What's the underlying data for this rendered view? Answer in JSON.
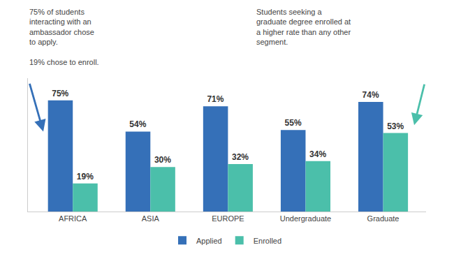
{
  "chart_data": {
    "type": "bar",
    "categories": [
      "AFRICA",
      "ASIA",
      "EUROPE",
      "Undergraduate",
      "Graduate"
    ],
    "series": [
      {
        "name": "Applied",
        "color": "#3570B8",
        "values": [
          75,
          54,
          71,
          55,
          74
        ],
        "value_labels": [
          "75%",
          "54%",
          "71%",
          "55%",
          "74%"
        ]
      },
      {
        "name": "Enrolled",
        "color": "#4BBFAA",
        "values": [
          19,
          30,
          32,
          34,
          53
        ],
        "value_labels": [
          "19%",
          "30%",
          "32%",
          "34%",
          "53%"
        ]
      }
    ],
    "ylim": [
      0,
      90
    ],
    "grid": false,
    "legend": "bottom",
    "data_labels": true,
    "tick_labels": "x",
    "annotations": [
      "75% of students\ninteracting with an\nambassador chose\nto apply.\n\n19% chose to enroll.",
      "Students seeking a\ngraduate degree enrolled at\na higher rate than any other\nsegment."
    ]
  }
}
